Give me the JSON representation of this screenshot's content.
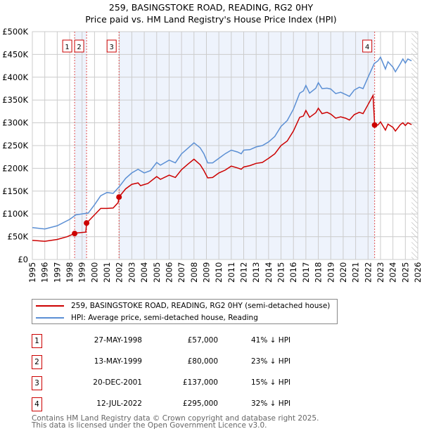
{
  "title": "259, BASINGSTOKE ROAD, READING, RG2 0HY",
  "subtitle": "Price paid vs. HM Land Registry's House Price Index (HPI)",
  "chart_data": {
    "type": "line",
    "xlim": [
      1995,
      2026
    ],
    "ylim": [
      0,
      500000
    ],
    "x_ticks": [
      "1995",
      "1996",
      "1997",
      "1998",
      "1999",
      "2000",
      "2001",
      "2002",
      "2003",
      "2004",
      "2005",
      "2006",
      "2007",
      "2008",
      "2009",
      "2010",
      "2011",
      "2012",
      "2013",
      "2014",
      "2015",
      "2016",
      "2017",
      "2018",
      "2019",
      "2020",
      "2021",
      "2022",
      "2023",
      "2024",
      "2025",
      "2026"
    ],
    "y_ticks": [
      {
        "value": 0,
        "label": "£0"
      },
      {
        "value": 50000,
        "label": "£50K"
      },
      {
        "value": 100000,
        "label": "£100K"
      },
      {
        "value": 150000,
        "label": "£150K"
      },
      {
        "value": 200000,
        "label": "£200K"
      },
      {
        "value": 250000,
        "label": "£250K"
      },
      {
        "value": 300000,
        "label": "£300K"
      },
      {
        "value": 350000,
        "label": "£350K"
      },
      {
        "value": 400000,
        "label": "£400K"
      },
      {
        "value": 450000,
        "label": "£450K"
      },
      {
        "value": 500000,
        "label": "£500K"
      }
    ],
    "grid": true,
    "series": [
      {
        "name": "259, BASINGSTOKE ROAD, READING, RG2 0HY (semi-detached house)",
        "color": "#cc0000",
        "x": [
          1995,
          1996,
          1997,
          1997.8,
          1998.4,
          1998.5,
          1999.3,
          1999.36,
          2000,
          2000.5,
          2001,
          2001.5,
          2001.9,
          2001.97,
          2002.5,
          2003,
          2003.5,
          2003.7,
          2004.3,
          2005,
          2005.3,
          2006,
          2006.5,
          2007,
          2007.5,
          2008,
          2008.5,
          2008.8,
          2009.1,
          2009.5,
          2010,
          2010.5,
          2011,
          2011.5,
          2011.8,
          2012,
          2012.5,
          2013,
          2013.5,
          2014,
          2014.5,
          2015,
          2015.5,
          2016,
          2016.5,
          2016.8,
          2017,
          2017.3,
          2017.8,
          2018,
          2018.3,
          2018.7,
          2019,
          2019.4,
          2019.8,
          2020.2,
          2020.5,
          2020.9,
          2021.3,
          2021.6,
          2022,
          2022.4,
          2022.53,
          2022.8,
          2023,
          2023.4,
          2023.6,
          2024,
          2024.2,
          2024.6,
          2024.8,
          2025,
          2025.2,
          2025.5
        ],
        "y": [
          42000,
          40000,
          44000,
          50000,
          57000,
          58000,
          60000,
          80000,
          98000,
          112000,
          112000,
          113000,
          125000,
          137000,
          155000,
          165000,
          168000,
          162000,
          167000,
          182000,
          176000,
          185000,
          180000,
          197000,
          209000,
          220000,
          208000,
          195000,
          179000,
          180000,
          190000,
          196000,
          205000,
          201000,
          198000,
          203000,
          206000,
          211000,
          213000,
          222000,
          232000,
          250000,
          260000,
          282000,
          312000,
          315000,
          327000,
          312000,
          322000,
          332000,
          320000,
          323000,
          319000,
          310000,
          313000,
          310000,
          306000,
          318000,
          323000,
          320000,
          340000,
          360000,
          295000,
          295000,
          302000,
          284000,
          297000,
          290000,
          282000,
          296000,
          300000,
          294000,
          300000,
          296000
        ]
      },
      {
        "name": "HPI: Average price, semi-detached house, Reading",
        "color": "#5b8fd4",
        "x": [
          1995,
          1996,
          1997,
          1998,
          1998.5,
          1999.5,
          2000,
          2000.5,
          2001,
          2001.5,
          2002,
          2002.5,
          2003,
          2003.5,
          2004,
          2004.5,
          2005,
          2005.3,
          2006,
          2006.5,
          2007,
          2007.5,
          2008,
          2008.5,
          2008.8,
          2009.1,
          2009.5,
          2010,
          2010.5,
          2011,
          2011.5,
          2011.8,
          2012,
          2012.5,
          2013,
          2013.5,
          2014,
          2014.5,
          2015,
          2015.5,
          2016,
          2016.5,
          2016.8,
          2017,
          2017.3,
          2017.8,
          2018,
          2018.3,
          2018.7,
          2019,
          2019.4,
          2019.8,
          2020.2,
          2020.5,
          2020.9,
          2021.3,
          2021.6,
          2022,
          2022.5,
          2022.8,
          2023,
          2023.4,
          2023.6,
          2024,
          2024.2,
          2024.6,
          2024.8,
          2025,
          2025.2,
          2025.5
        ],
        "y": [
          70000,
          67000,
          74000,
          88000,
          98000,
          102000,
          120000,
          140000,
          147000,
          145000,
          160000,
          178000,
          190000,
          198000,
          190000,
          195000,
          213000,
          207000,
          218000,
          212000,
          232000,
          244000,
          256000,
          245000,
          232000,
          212000,
          212000,
          222000,
          232000,
          240000,
          236000,
          232000,
          240000,
          241000,
          247000,
          250000,
          258000,
          270000,
          292000,
          305000,
          330000,
          365000,
          370000,
          382000,
          365000,
          376000,
          388000,
          375000,
          376000,
          374000,
          364000,
          367000,
          362000,
          358000,
          372000,
          378000,
          375000,
          400000,
          430000,
          436000,
          444000,
          418000,
          434000,
          422000,
          412000,
          430000,
          440000,
          431000,
          440000,
          436000
        ]
      }
    ],
    "annotations": [
      {
        "label": "1",
        "x": 1998.4,
        "value": 57000
      },
      {
        "label": "2",
        "x": 1999.36,
        "value": 80000
      },
      {
        "label": "3",
        "x": 2001.97,
        "value": 137000
      },
      {
        "label": "4",
        "x": 2022.53,
        "value": 295000
      }
    ],
    "hatched_after": 2025.5,
    "legend_placement": "below"
  },
  "legend": {
    "property": "259, BASINGSTOKE ROAD, READING, RG2 0HY (semi-detached house)",
    "hpi": "HPI: Average price, semi-detached house, Reading"
  },
  "sales": [
    {
      "num": "1",
      "date": "27-MAY-1998",
      "price": "£57,000",
      "diff": "41% ↓ HPI"
    },
    {
      "num": "2",
      "date": "13-MAY-1999",
      "price": "£80,000",
      "diff": "23% ↓ HPI"
    },
    {
      "num": "3",
      "date": "20-DEC-2001",
      "price": "£137,000",
      "diff": "15% ↓ HPI"
    },
    {
      "num": "4",
      "date": "12-JUL-2022",
      "price": "£295,000",
      "diff": "32% ↓ HPI"
    }
  ],
  "footer": {
    "line1": "Contains HM Land Registry data © Crown copyright and database right 2025.",
    "line2": "This data is licensed under the Open Government Licence v3.0."
  }
}
